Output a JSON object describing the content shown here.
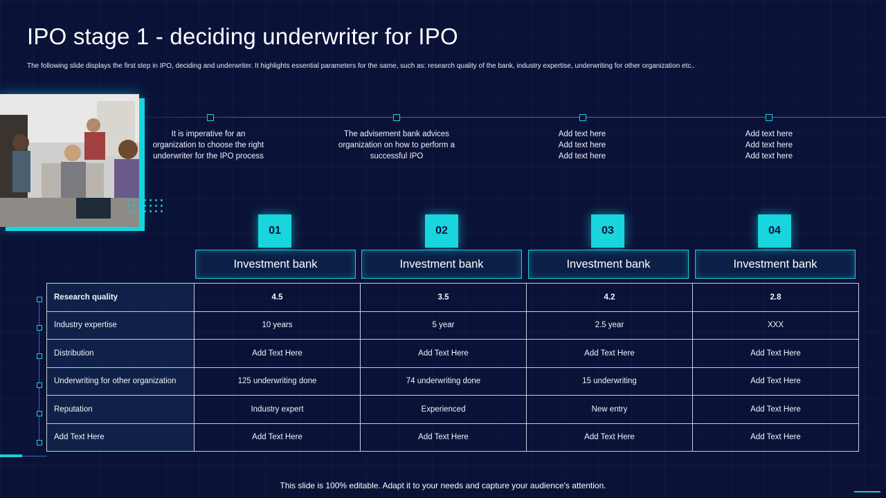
{
  "title": "IPO stage 1 - deciding underwriter for IPO",
  "subtitle": "The following slide displays the first step in IPO, deciding and underwriter. It highlights essential parameters for the same, such as: research quality of the bank, industry expertise, underwriting for other organization etc..",
  "steps": [
    {
      "number": "01",
      "desc": "It is imperative for an organization to choose the right underwriter for the IPO process",
      "bank": "Investment bank"
    },
    {
      "number": "02",
      "desc": "The advisement bank advices organization on how to perform a successful IPO",
      "bank": "Investment bank"
    },
    {
      "number": "03",
      "desc": "Add text here\nAdd text here\nAdd text here",
      "bank": "Investment bank"
    },
    {
      "number": "04",
      "desc": "Add text here\nAdd text here\nAdd text here",
      "bank": "Investment bank"
    }
  ],
  "table": {
    "rows": [
      {
        "label": "Research quality",
        "values": [
          "4.5",
          "3.5",
          "4.2",
          "2.8"
        ]
      },
      {
        "label": "Industry expertise",
        "values": [
          "10 years",
          "5 year",
          "2.5 year",
          "XXX"
        ]
      },
      {
        "label": "Distribution",
        "values": [
          "Add Text Here",
          "Add Text Here",
          "Add Text Here",
          "Add Text Here"
        ]
      },
      {
        "label": "Underwriting for other organization",
        "values": [
          "125 underwriting done",
          "74 underwriting done",
          "15 underwriting",
          "Add Text Here"
        ]
      },
      {
        "label": "Reputation",
        "values": [
          "Industry expert",
          "Experienced",
          "New entry",
          "Add Text Here"
        ]
      },
      {
        "label": "Add Text Here",
        "values": [
          "Add Text Here",
          "Add Text Here",
          "Add Text Here",
          "Add Text Here"
        ]
      }
    ]
  },
  "footer": "This slide is 100% editable. Adapt it to your needs and capture your audience's attention.",
  "colors": {
    "background": "#0b1238",
    "accent": "#19d5dd",
    "grid_border": "#c9cedf"
  }
}
